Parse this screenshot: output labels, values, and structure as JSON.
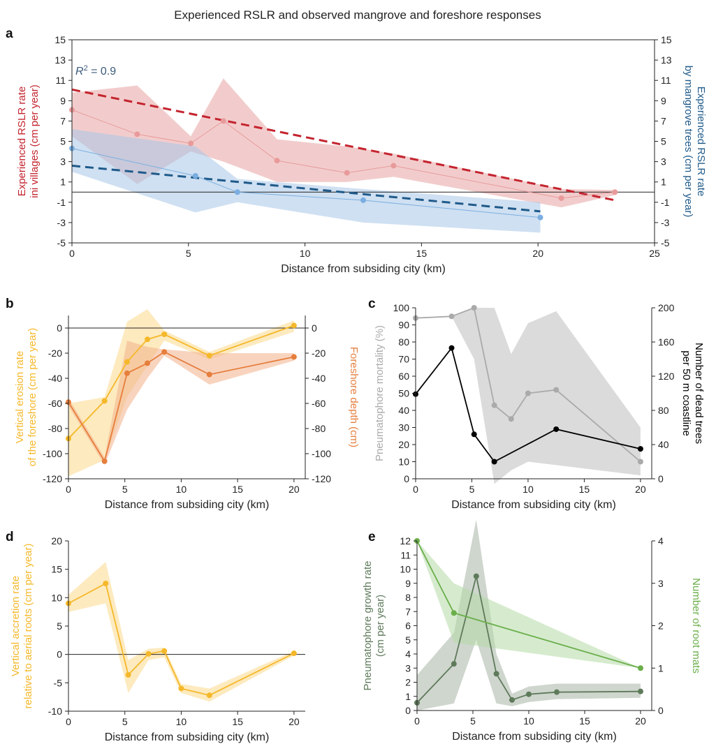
{
  "figure_title": "Experienced RSLR and observed mangrove and foreshore responses",
  "chart_data": [
    {
      "panel": "a",
      "type": "line",
      "xlabel": "Distance from subsiding city (km)",
      "xlim": [
        0,
        25
      ],
      "xticks": [
        0,
        5,
        10,
        15,
        20,
        25
      ],
      "ylabel": "Experienced RSLR rate\nini villages (cm per year)",
      "ylim": [
        -5,
        15
      ],
      "yticks": [
        -5,
        -3,
        -1,
        1,
        3,
        5,
        7,
        9,
        11,
        13,
        15
      ],
      "y2label": "Experienced RSLR rate\nby mangrove trees (cm per year)",
      "y2lim": [
        -5,
        15
      ],
      "y2ticks": [
        -5,
        -3,
        -1,
        1,
        3,
        5,
        7,
        9,
        11,
        13,
        15
      ],
      "zero_line": true,
      "annotation": {
        "text_italic": "R",
        "superscript": "2",
        "text": " = 0.9"
      },
      "series": [
        {
          "axis": "left",
          "color": "#e89a9a",
          "band_color": "#e8a3a3",
          "x": [
            0,
            2.8,
            5.1,
            6.5,
            8.8,
            11.8,
            13.8,
            21,
            23.3
          ],
          "y": [
            8.1,
            5.7,
            4.8,
            7.0,
            3.1,
            1.9,
            2.6,
            -0.6,
            0.0
          ],
          "lower": [
            5.5,
            0.8,
            4.0,
            3.0,
            1.0,
            1.0,
            1.5,
            -1.5,
            -0.3
          ],
          "upper": [
            9.8,
            10.5,
            5.5,
            11.2,
            5.2,
            4.5,
            3.8,
            0.3,
            0.2
          ]
        },
        {
          "axis": "right",
          "color": "#7aaee0",
          "band_color": "#a7c7e8",
          "x": [
            0,
            5.3,
            7.1,
            12.5,
            20.1
          ],
          "y": [
            4.3,
            1.6,
            0.0,
            -0.8,
            -2.5
          ],
          "lower": [
            2.0,
            -2.0,
            -1.0,
            -3.0,
            -4.0
          ],
          "upper": [
            6.2,
            4.5,
            1.3,
            0.3,
            -1.0
          ]
        }
      ],
      "trendlines": [
        {
          "axis": "left",
          "color": "#c4242f",
          "x": [
            0,
            23.3
          ],
          "y": [
            10.1,
            -0.8
          ]
        },
        {
          "axis": "right",
          "color": "#1f5a8a",
          "x": [
            0,
            20.1
          ],
          "y": [
            2.6,
            -1.9
          ]
        }
      ]
    },
    {
      "panel": "b",
      "type": "line",
      "xlabel": "Distance from subsiding city (km)",
      "xlim": [
        0,
        21
      ],
      "xticks": [
        0,
        5,
        10,
        15,
        20
      ],
      "ylabel": "Vertical erosion rate\nof the foreshore (cm per year)",
      "ylim": [
        -120,
        10
      ],
      "yticks": [
        -120,
        -100,
        -80,
        -60,
        -40,
        -20,
        0
      ],
      "y2label": "Foreshore depth (cm)",
      "y2lim": [
        -120,
        10
      ],
      "y2ticks": [
        -120,
        -100,
        -80,
        -60,
        -40,
        -20,
        0
      ],
      "zero_line": true,
      "series": [
        {
          "axis": "left",
          "color": "#f5b82a",
          "band_color": "#fbd98a",
          "x": [
            0,
            3.2,
            5.2,
            7.0,
            8.5,
            12.5,
            20
          ],
          "y": [
            -88,
            -58,
            -27,
            -9,
            -5,
            -22,
            2
          ],
          "lower": [
            -118,
            -105,
            -55,
            -30,
            -10,
            -25,
            -3
          ],
          "upper": [
            -60,
            -55,
            5,
            15,
            -2,
            -19,
            6
          ]
        },
        {
          "axis": "right",
          "color": "#e67e3c",
          "band_color": "#f2b08a",
          "x": [
            0,
            3.2,
            5.2,
            7.0,
            8.5,
            12.5,
            20
          ],
          "y": [
            -59,
            -106,
            -36,
            -28,
            -19,
            -37,
            -23
          ],
          "lower": [
            -62,
            -109,
            -65,
            -40,
            -22,
            -45,
            -26
          ],
          "upper": [
            -56,
            -103,
            -10,
            -15,
            -17,
            -20,
            -20
          ]
        }
      ]
    },
    {
      "panel": "c",
      "type": "line",
      "xlabel": "Distance from subsiding city (km)",
      "xlim": [
        0,
        21
      ],
      "xticks": [
        0,
        5,
        10,
        15,
        20
      ],
      "ylabel": "Pneumatophore mortality (%)",
      "ylim": [
        0,
        100
      ],
      "yticks": [
        0,
        10,
        20,
        30,
        40,
        50,
        60,
        70,
        80,
        90,
        100
      ],
      "y2label": "Number of dead trees\nper 50 m coastline",
      "y2lim": [
        0,
        200
      ],
      "y2ticks": [
        0,
        40,
        80,
        120,
        160,
        200
      ],
      "series": [
        {
          "axis": "left",
          "color": "#aaaaaa",
          "band_color": "#bdbdbd",
          "x": [
            0,
            3.2,
            5.2,
            7.0,
            8.5,
            10,
            12.5,
            20
          ],
          "y": [
            94,
            95,
            100,
            43,
            35,
            50,
            52,
            10
          ],
          "lower": [
            94,
            95,
            70,
            -3,
            5,
            10,
            8,
            2
          ],
          "upper": [
            94,
            95,
            100,
            100,
            73,
            91,
            98,
            30
          ]
        },
        {
          "axis": "right",
          "color": "#000000",
          "band_color": null,
          "x": [
            0,
            3.2,
            5.2,
            7.0,
            12.5,
            20
          ],
          "y": [
            99,
            153,
            52,
            20,
            58,
            35
          ]
        }
      ]
    },
    {
      "panel": "d",
      "type": "line",
      "xlabel": "Distance from subsiding city (km)",
      "xlim": [
        0,
        21
      ],
      "xticks": [
        0,
        5,
        10,
        15,
        20
      ],
      "ylabel": "Vertical accretion rate\nrelative to aerial roots (cm per year)",
      "ylim": [
        -10,
        20
      ],
      "yticks": [
        -10,
        -5,
        0,
        5,
        10,
        15,
        20
      ],
      "zero_line": true,
      "series": [
        {
          "axis": "left",
          "color": "#f5b82a",
          "band_color": "#fbd98a",
          "x": [
            0,
            3.3,
            5.3,
            7.1,
            8.5,
            10,
            12.5,
            20
          ],
          "y": [
            9.0,
            12.5,
            -3.6,
            0.1,
            0.6,
            -6.0,
            -7.2,
            0.2
          ],
          "lower": [
            7.5,
            9.0,
            -6.8,
            -1.0,
            -0.5,
            -6.8,
            -8.3,
            -0.2
          ],
          "upper": [
            10.5,
            16.3,
            -1.0,
            1.0,
            1.2,
            -5.2,
            -6.0,
            0.6
          ]
        }
      ]
    },
    {
      "panel": "e",
      "type": "line",
      "xlabel": "Distance from subsiding city (km)",
      "xlim": [
        0,
        21
      ],
      "xticks": [
        0,
        5,
        10,
        15,
        20
      ],
      "ylabel": "Pneumatophore growth rate\n(cm per year)",
      "ylim": [
        0,
        12
      ],
      "yticks": [
        0,
        1,
        2,
        3,
        4,
        5,
        6,
        7,
        8,
        9,
        10,
        11,
        12
      ],
      "y2label": "Number of root mats",
      "y2lim": [
        0,
        4
      ],
      "y2ticks": [
        0,
        1,
        2,
        3,
        4
      ],
      "series": [
        {
          "axis": "left",
          "color": "#5e7a5a",
          "band_color": "#a8b5a5",
          "x": [
            0,
            3.3,
            5.3,
            7.1,
            8.5,
            10,
            12.5,
            20
          ],
          "y": [
            0.55,
            3.3,
            9.5,
            2.6,
            0.75,
            1.15,
            1.3,
            1.35
          ],
          "lower": [
            0,
            0.5,
            5.0,
            0.5,
            0.3,
            0.6,
            0.8,
            0.9
          ],
          "upper": [
            2.5,
            5.5,
            13.5,
            4.0,
            1.2,
            1.7,
            1.9,
            1.9
          ]
        },
        {
          "axis": "right",
          "color": "#6aae4a",
          "band_color": "#b5dba6",
          "x": [
            0,
            3.3,
            20
          ],
          "y": [
            4.0,
            2.3,
            1.0
          ],
          "lower": [
            4.0,
            1.6,
            1.0
          ],
          "upper": [
            4.0,
            3.0,
            1.0
          ]
        }
      ]
    }
  ]
}
